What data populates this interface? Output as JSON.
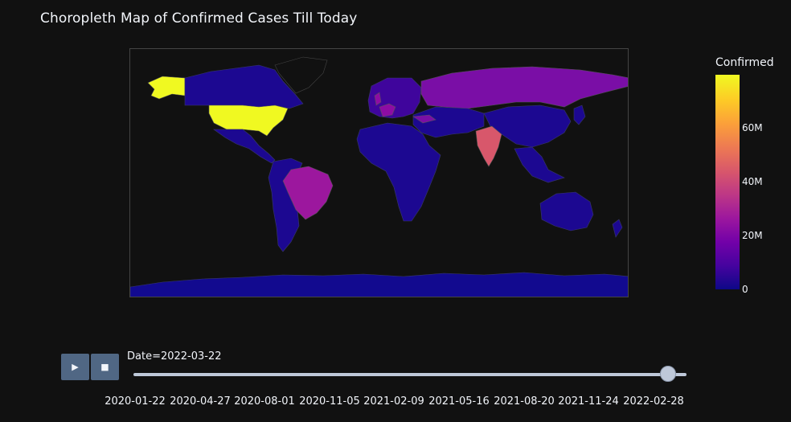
{
  "title": "Choropleth Map of Confirmed Cases Till Today",
  "colorbar": {
    "title": "Confirmed",
    "ticks": [
      "60M",
      "40M",
      "20M",
      "0"
    ],
    "colors": [
      "#0d0887",
      "#46039f",
      "#7201a8",
      "#9c179e",
      "#bd3786",
      "#d8576b",
      "#ed7953",
      "#fb9f3a",
      "#fdca26",
      "#f0f921"
    ]
  },
  "map": {
    "projection": "equirectangular",
    "background": "#111111",
    "country_colors": {
      "USA": "#f0f921",
      "India": "#d8576b",
      "Brazil": "#9c179e",
      "Russia": "#7a0ea6",
      "France": "#8e0ca4",
      "United Kingdom": "#8e0ca4",
      "Germany": "#7f0aa6",
      "Turkey": "#7a0ea6",
      "Italy": "#6a00a8",
      "default": "#1c0891"
    }
  },
  "controls": {
    "play_icon": "play-icon",
    "stop_icon": "stop-icon"
  },
  "slider": {
    "current": "Date=2022-03-22",
    "ticks": [
      "2020-01-22",
      "2020-04-27",
      "2020-08-01",
      "2020-11-05",
      "2021-02-09",
      "2021-05-16",
      "2021-08-20",
      "2021-11-24",
      "2022-02-28"
    ]
  }
}
